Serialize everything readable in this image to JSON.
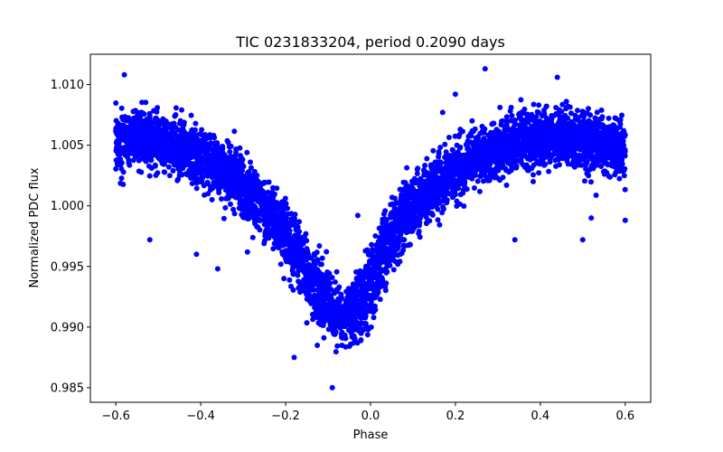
{
  "chart_data": {
    "type": "scatter",
    "title": "TIC 0231833204, period 0.2090 days",
    "xlabel": "Phase",
    "ylabel": "Normalized PDC flux",
    "xlim": [
      -0.66,
      0.66
    ],
    "ylim": [
      0.9838,
      1.0125
    ],
    "xticks": [
      -0.6,
      -0.4,
      -0.2,
      0.0,
      0.2,
      0.4,
      0.6
    ],
    "xtick_labels": [
      "−0.6",
      "−0.4",
      "−0.2",
      "0.0",
      "0.2",
      "0.4",
      "0.6"
    ],
    "yticks": [
      0.985,
      0.99,
      0.995,
      1.0,
      1.005,
      1.01
    ],
    "ytick_labels": [
      "0.985",
      "0.990",
      "0.995",
      "1.000",
      "1.005",
      "1.010"
    ],
    "grid": false,
    "legend": "none",
    "marker_color": "#0000ff",
    "series": [
      {
        "phase_range": [
          -0.6,
          0.6
        ],
        "trend": {
          "x": [
            -0.6,
            -0.5,
            -0.4,
            -0.3,
            -0.2,
            -0.15,
            -0.1,
            -0.05,
            0.0,
            0.05,
            0.1,
            0.2,
            0.3,
            0.4,
            0.5,
            0.6
          ],
          "y": [
            1.0058,
            1.0052,
            1.004,
            1.002,
            0.9975,
            0.9945,
            0.9915,
            0.9905,
            0.9935,
            0.9975,
            1.0,
            1.003,
            1.0048,
            1.0058,
            1.0055,
            1.0045
          ]
        },
        "outliers": [
          {
            "x": -0.58,
            "y": 1.0108
          },
          {
            "x": -0.52,
            "y": 0.9972
          },
          {
            "x": -0.41,
            "y": 0.996
          },
          {
            "x": -0.36,
            "y": 0.9948
          },
          {
            "x": -0.29,
            "y": 0.9962
          },
          {
            "x": -0.18,
            "y": 0.9875
          },
          {
            "x": -0.09,
            "y": 0.985
          },
          {
            "x": -0.03,
            "y": 0.9992
          },
          {
            "x": 0.11,
            "y": 1.003
          },
          {
            "x": 0.17,
            "y": 1.0077
          },
          {
            "x": 0.2,
            "y": 1.0092
          },
          {
            "x": 0.27,
            "y": 1.0113
          },
          {
            "x": 0.34,
            "y": 0.9972
          },
          {
            "x": 0.44,
            "y": 1.0106
          },
          {
            "x": 0.5,
            "y": 0.9972
          },
          {
            "x": 0.52,
            "y": 0.999
          },
          {
            "x": 0.6,
            "y": 0.9988
          }
        ]
      }
    ]
  }
}
